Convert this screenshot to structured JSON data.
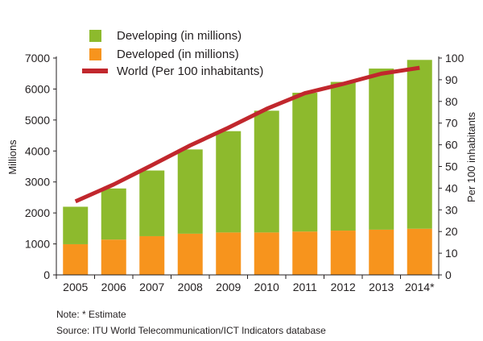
{
  "chart_data": {
    "type": "bar",
    "stacked": true,
    "categories": [
      "2005",
      "2006",
      "2007",
      "2008",
      "2009",
      "2010",
      "2011",
      "2012",
      "2013",
      "2014*"
    ],
    "series": [
      {
        "name": "Developed (in millions)",
        "axis": "left",
        "color": "#f7941d",
        "values": [
          990,
          1140,
          1250,
          1330,
          1370,
          1370,
          1400,
          1430,
          1460,
          1490
        ]
      },
      {
        "name": "Developing (in millions)",
        "axis": "left",
        "color": "#8dba2d",
        "values": [
          1210,
          1650,
          2120,
          2720,
          3270,
          3930,
          4480,
          4800,
          5200,
          5450
        ]
      },
      {
        "name": "World (Per 100 inhabitants)",
        "axis": "right",
        "type": "line",
        "color": "#c1272d",
        "values": [
          33.9,
          41.7,
          50.6,
          59.7,
          67.9,
          76.6,
          83.8,
          88.1,
          92.8,
          95.5
        ]
      }
    ],
    "legend_order": [
      "Developing (in millions)",
      "Developed (in millions)",
      "World (Per 100 inhabitants)"
    ],
    "legend_position": "top-left",
    "ylabel": "Millions",
    "ylim": [
      0,
      7000
    ],
    "yticks": [
      0,
      1000,
      2000,
      3000,
      4000,
      5000,
      6000,
      7000
    ],
    "y2label": "Per 100 inhabitants",
    "y2lim": [
      0,
      100
    ],
    "y2ticks": [
      0,
      10,
      20,
      30,
      40,
      50,
      60,
      70,
      80,
      90,
      100
    ],
    "grid": false
  },
  "notes": {
    "note": "Note: * Estimate",
    "source": "Source:  ITU World Telecommunication/ICT Indicators database"
  }
}
